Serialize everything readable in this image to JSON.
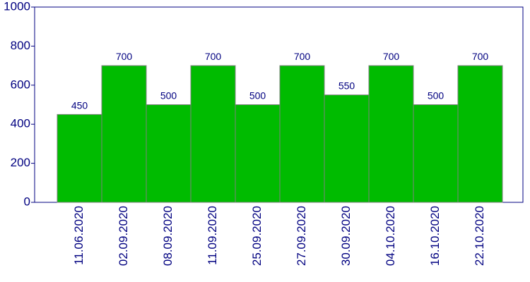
{
  "chart_data": {
    "type": "bar",
    "categories": [
      "11.06.2020",
      "02.09.2020",
      "08.09.2020",
      "11.09.2020",
      "25.09.2020",
      "27.09.2020",
      "30.09.2020",
      "04.10.2020",
      "16.10.2020",
      "22.10.2020"
    ],
    "values": [
      450,
      700,
      500,
      700,
      500,
      700,
      550,
      700,
      500,
      700
    ],
    "color": "#00bb00",
    "ylim": [
      0,
      1000
    ],
    "yticks": [
      0,
      200,
      400,
      600,
      800,
      1000
    ]
  }
}
